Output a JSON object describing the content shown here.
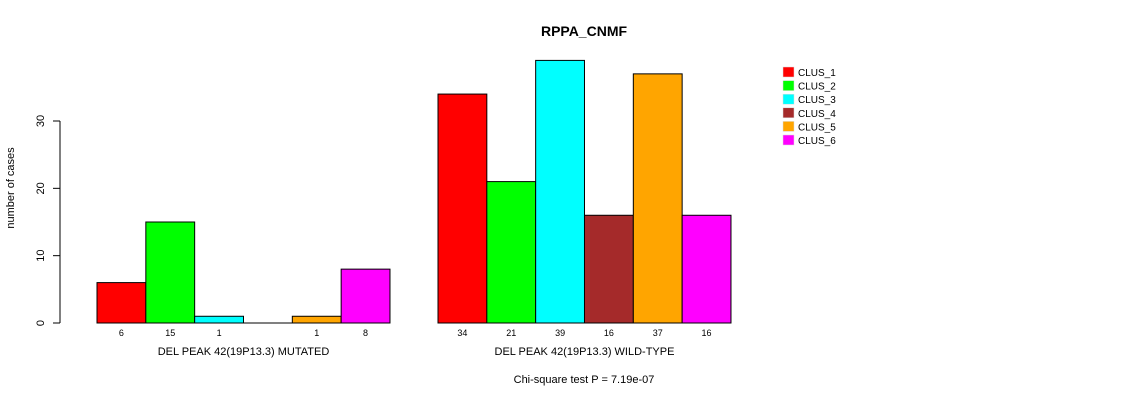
{
  "chart_data": {
    "type": "bar",
    "title": "RPPA_CNMF",
    "ylabel": "number of cases",
    "ylim": [
      0,
      39
    ],
    "yticks": [
      0,
      10,
      20,
      30
    ],
    "groups": [
      {
        "label": "DEL PEAK 42(19P13.3) MUTATED",
        "values": [
          6,
          15,
          1,
          0,
          1,
          8
        ],
        "value_labels": [
          "6",
          "15",
          "1",
          "",
          "1",
          "8"
        ]
      },
      {
        "label": "DEL PEAK 42(19P13.3) WILD-TYPE",
        "values": [
          34,
          21,
          39,
          16,
          37,
          16
        ],
        "value_labels": [
          "34",
          "21",
          "39",
          "16",
          "37",
          "16"
        ]
      }
    ],
    "series": [
      {
        "name": "CLUS_1",
        "color": "#FF0000"
      },
      {
        "name": "CLUS_2",
        "color": "#00FF00"
      },
      {
        "name": "CLUS_3",
        "color": "#00FFFF"
      },
      {
        "name": "CLUS_4",
        "color": "#A52A2A"
      },
      {
        "name": "CLUS_5",
        "color": "#FFA500"
      },
      {
        "name": "CLUS_6",
        "color": "#FF00FF"
      }
    ],
    "legend_position": "top-right",
    "footnote": "Chi-square test P = 7.19e-07"
  }
}
